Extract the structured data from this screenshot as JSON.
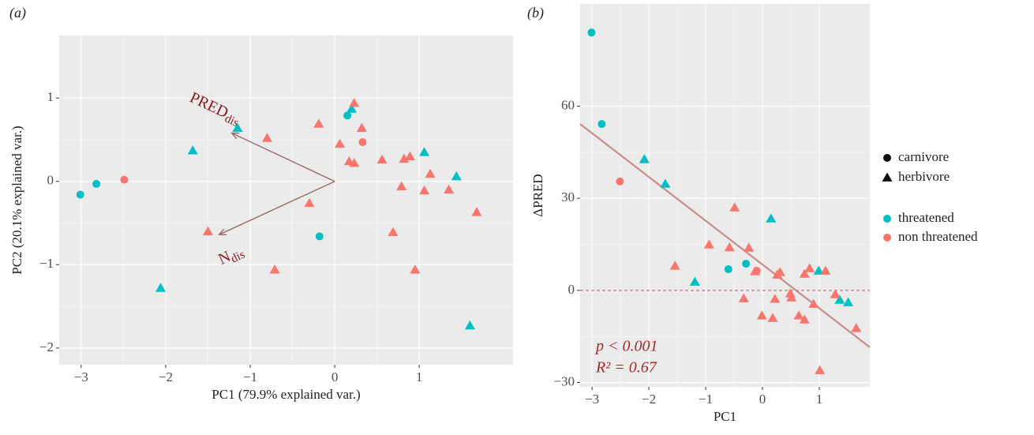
{
  "chart_data": [
    {
      "type": "scatter",
      "title": "(a)",
      "xlabel": "PC1 (79.9% explained var.)",
      "ylabel": "PC2 (20.1% explained var.)",
      "xlim": [
        -3.26,
        2.11
      ],
      "ylim": [
        -2.2,
        1.75
      ],
      "xticks": [
        {
          "value": -3,
          "label": "−3"
        },
        {
          "value": -2,
          "label": "−2"
        },
        {
          "value": -1,
          "label": "−1"
        },
        0,
        1
      ],
      "yticks": [
        {
          "value": -2,
          "label": "−2"
        },
        {
          "value": -1,
          "label": "−1"
        },
        0,
        1
      ],
      "grid": true,
      "series": [
        {
          "name": "threatened",
          "color": "#00BFC4",
          "marker": "circle",
          "x": [
            -3.01,
            -2.82,
            -0.18,
            0.15
          ],
          "values": [
            -0.16,
            -0.03,
            -0.66,
            0.79
          ]
        },
        {
          "name": "non threatened",
          "color": "#F8766D",
          "marker": "circle",
          "x": [
            -2.49,
            0.33
          ],
          "values": [
            0.02,
            0.47
          ]
        },
        {
          "name": "threatened",
          "color": "#00BFC4",
          "marker": "triangle",
          "x": [
            -1.15,
            -1.68,
            -2.06,
            0.2,
            1.06,
            1.44,
            1.6
          ],
          "values": [
            0.64,
            0.37,
            -1.28,
            0.87,
            0.35,
            0.06,
            -1.73
          ]
        },
        {
          "name": "non threatened",
          "color": "#F8766D",
          "marker": "triangle",
          "x": [
            -1.5,
            -0.71,
            -0.8,
            -0.19,
            0.23,
            0.32,
            0.06,
            0.17,
            0.23,
            -0.3,
            0.56,
            0.82,
            0.89,
            0.79,
            1.13,
            1.06,
            1.35,
            1.68,
            0.69,
            0.95
          ],
          "values": [
            -0.6,
            -1.06,
            0.52,
            0.69,
            0.94,
            0.64,
            0.45,
            0.24,
            0.22,
            -0.26,
            0.26,
            0.27,
            0.3,
            -0.06,
            0.09,
            -0.11,
            -0.1,
            -0.37,
            -0.61,
            -1.06
          ]
        }
      ],
      "arrows": [
        {
          "label": "PRED",
          "subscript": "dis",
          "x": -1.22,
          "y": 0.58,
          "color": "#9b6b6b"
        },
        {
          "label": "N",
          "subscript": "dis",
          "x": -1.37,
          "y": -0.64,
          "color": "#9b6b6b"
        }
      ]
    },
    {
      "type": "scatter",
      "title": "(b)",
      "xlabel": "PC1",
      "ylabel": "ΔPRED",
      "xlim": [
        -3.21,
        1.89
      ],
      "ylim": [
        -31.4,
        93.3
      ],
      "xticks": [
        {
          "value": -3,
          "label": "−3"
        },
        {
          "value": -2,
          "label": "−2"
        },
        {
          "value": -1,
          "label": "−1"
        },
        0,
        1
      ],
      "yticks": [
        {
          "value": -30,
          "label": "−30"
        },
        0,
        30,
        60
      ],
      "grid": true,
      "series": [
        {
          "name": "threatened",
          "color": "#00BFC4",
          "marker": "circle",
          "x": [
            -3.01,
            -2.83,
            -0.6,
            -0.29
          ],
          "values": [
            84,
            54.2,
            6.9,
            8.7
          ]
        },
        {
          "name": "non threatened",
          "color": "#F8766D",
          "marker": "circle",
          "x": [
            -2.51,
            -0.1
          ],
          "values": [
            35.5,
            6.4
          ]
        },
        {
          "name": "threatened",
          "color": "#00BFC4",
          "marker": "triangle",
          "x": [
            -2.08,
            -1.71,
            -1.19,
            0.15,
            0.99,
            1.36,
            1.51
          ],
          "values": [
            42.7,
            34.7,
            2.8,
            23.4,
            6.4,
            -3.1,
            -3.9
          ]
        },
        {
          "name": "non threatened",
          "color": "#F8766D",
          "marker": "triangle",
          "x": [
            -0.49,
            -0.94,
            -1.54,
            -0.58,
            -0.24,
            -0.33,
            -0.01,
            0.18,
            -0.13,
            0.31,
            0.26,
            0.49,
            0.51,
            0.64,
            0.74,
            0.74,
            0.83,
            0.9,
            1.11,
            1.28,
            1.65,
            1.01,
            0.22
          ],
          "values": [
            27,
            14.9,
            8,
            14,
            13.9,
            -2.6,
            -8.2,
            -9,
            6.2,
            5.9,
            5.1,
            -1,
            -2.3,
            -8.2,
            -9.5,
            5.4,
            7.2,
            -4.4,
            6.4,
            -1.3,
            -12.3,
            -26,
            -2.8
          ]
        }
      ],
      "trend": {
        "x": [
          -3.21,
          1.89
        ],
        "y": [
          54.2,
          -18.5
        ],
        "color": "#c98b8b"
      },
      "hline": {
        "y": 0,
        "color": "#b5505a"
      },
      "annotations": [
        "p < 0.001",
        "R² = 0.67"
      ],
      "legend": true,
      "shape_legend": [
        {
          "name": "carnivore",
          "marker": "circle"
        },
        {
          "name": "herbivore",
          "marker": "triangle"
        }
      ]
    }
  ]
}
